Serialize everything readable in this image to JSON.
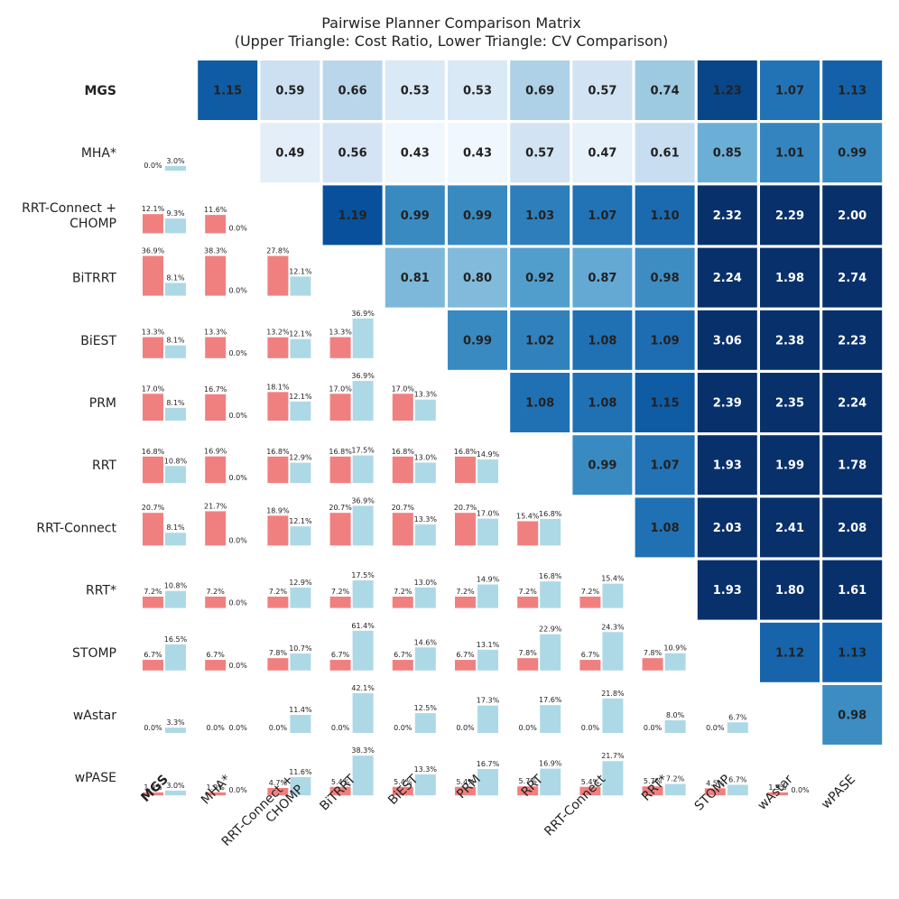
{
  "chart_data": {
    "type": "heatmap",
    "title": "Pairwise Planner Comparison Matrix",
    "subtitle": "(Upper Triangle: Cost Ratio, Lower Triangle: CV Comparison)",
    "planners": [
      "MGS",
      "MHA*",
      "RRT-Connect + CHOMP",
      "BiTRRT",
      "BiEST",
      "PRM",
      "RRT",
      "RRT-Connect",
      "RRT*",
      "STOMP",
      "wAstar",
      "wPASE"
    ],
    "highlight_planner": "MGS",
    "upper_triangle_cost_ratio": [
      [
        null,
        1.15,
        0.59,
        0.66,
        0.53,
        0.53,
        0.69,
        0.57,
        0.74,
        1.23,
        1.07,
        1.13
      ],
      [
        null,
        null,
        0.49,
        0.56,
        0.43,
        0.43,
        0.57,
        0.47,
        0.61,
        0.85,
        1.01,
        0.99
      ],
      [
        null,
        null,
        null,
        1.19,
        0.99,
        0.99,
        1.03,
        1.07,
        1.1,
        2.32,
        2.29,
        2.0
      ],
      [
        null,
        null,
        null,
        null,
        0.81,
        0.8,
        0.92,
        0.87,
        0.98,
        2.24,
        1.98,
        2.74
      ],
      [
        null,
        null,
        null,
        null,
        null,
        0.99,
        1.02,
        1.08,
        1.09,
        3.06,
        2.38,
        2.23
      ],
      [
        null,
        null,
        null,
        null,
        null,
        null,
        1.08,
        1.08,
        1.15,
        2.39,
        2.35,
        2.24
      ],
      [
        null,
        null,
        null,
        null,
        null,
        null,
        null,
        0.99,
        1.07,
        1.93,
        1.99,
        1.78
      ],
      [
        null,
        null,
        null,
        null,
        null,
        null,
        null,
        null,
        1.08,
        2.03,
        2.41,
        2.08
      ],
      [
        null,
        null,
        null,
        null,
        null,
        null,
        null,
        null,
        null,
        1.93,
        1.8,
        1.61
      ],
      [
        null,
        null,
        null,
        null,
        null,
        null,
        null,
        null,
        null,
        null,
        1.12,
        1.13
      ],
      [
        null,
        null,
        null,
        null,
        null,
        null,
        null,
        null,
        null,
        null,
        null,
        0.98
      ],
      [
        null,
        null,
        null,
        null,
        null,
        null,
        null,
        null,
        null,
        null,
        null,
        null
      ]
    ],
    "lower_triangle_cv_comparison": {
      "description": "Each cell [row][col] compares CV (%) of row planner (red bar) and column planner (blue bar)",
      "row_planner_color": "#f08080",
      "col_planner_color": "#add8e6",
      "cells": [
        [],
        [
          [
            0.0,
            3.0
          ]
        ],
        [
          [
            12.1,
            9.3
          ],
          [
            11.6,
            0.0
          ]
        ],
        [
          [
            36.9,
            8.1
          ],
          [
            38.3,
            0.0
          ],
          [
            27.8,
            12.1
          ]
        ],
        [
          [
            13.3,
            8.1
          ],
          [
            13.3,
            0.0
          ],
          [
            13.2,
            12.1
          ],
          [
            13.3,
            36.9
          ]
        ],
        [
          [
            17.0,
            8.1
          ],
          [
            16.7,
            0.0
          ],
          [
            18.1,
            12.1
          ],
          [
            17.0,
            36.9
          ],
          [
            17.0,
            13.3
          ]
        ],
        [
          [
            16.8,
            10.8
          ],
          [
            16.9,
            0.0
          ],
          [
            16.8,
            12.9
          ],
          [
            16.8,
            17.5
          ],
          [
            16.8,
            13.0
          ],
          [
            16.8,
            14.9
          ]
        ],
        [
          [
            20.7,
            8.1
          ],
          [
            21.7,
            0.0
          ],
          [
            18.9,
            12.1
          ],
          [
            20.7,
            36.9
          ],
          [
            20.7,
            13.3
          ],
          [
            20.7,
            17.0
          ],
          [
            15.4,
            16.8
          ]
        ],
        [
          [
            7.2,
            10.8
          ],
          [
            7.2,
            0.0
          ],
          [
            7.2,
            12.9
          ],
          [
            7.2,
            17.5
          ],
          [
            7.2,
            13.0
          ],
          [
            7.2,
            14.9
          ],
          [
            7.2,
            16.8
          ],
          [
            7.2,
            15.4
          ]
        ],
        [
          [
            6.7,
            16.5
          ],
          [
            6.7,
            0.0
          ],
          [
            7.8,
            10.7
          ],
          [
            6.7,
            61.4
          ],
          [
            6.7,
            14.6
          ],
          [
            6.7,
            13.1
          ],
          [
            7.8,
            22.9
          ],
          [
            6.7,
            24.3
          ],
          [
            7.8,
            10.9
          ]
        ],
        [
          [
            0.0,
            3.3
          ],
          [
            0.0,
            0.0
          ],
          [
            0.0,
            11.4
          ],
          [
            0.0,
            42.1
          ],
          [
            0.0,
            12.5
          ],
          [
            0.0,
            17.3
          ],
          [
            0.0,
            17.6
          ],
          [
            0.0,
            21.8
          ],
          [
            0.0,
            8.0
          ],
          [
            0.0,
            6.7
          ]
        ],
        [
          [
            1.9,
            3.0
          ],
          [
            1.9,
            0.0
          ],
          [
            4.7,
            11.6
          ],
          [
            5.4,
            38.3
          ],
          [
            5.4,
            13.3
          ],
          [
            5.4,
            16.7
          ],
          [
            5.7,
            16.9
          ],
          [
            5.4,
            21.7
          ],
          [
            5.7,
            7.2
          ],
          [
            4.5,
            6.7
          ],
          [
            1.9,
            0.0
          ]
        ]
      ]
    },
    "colormap": "Blues",
    "color_range": [
      0.4,
      1.3
    ],
    "label_threshold": 1.25,
    "text_color_dark": "#222222",
    "text_color_light": "#ffffff"
  }
}
